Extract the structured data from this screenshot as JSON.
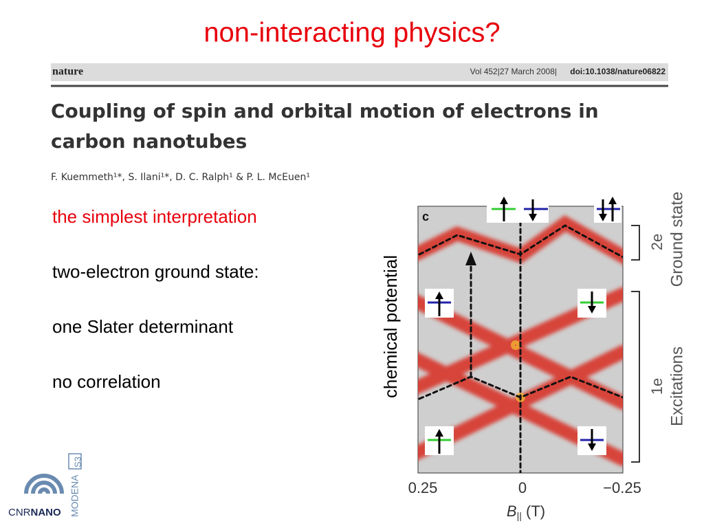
{
  "title": "non-interacting physics?",
  "paper": {
    "journal": "nature",
    "citation": "Vol 452|27 March 2008|",
    "doi": "doi:10.1038/nature06822",
    "title_lines": [
      "Coupling of spin and orbital motion of electrons in",
      "carbon nanotubes"
    ],
    "authors": "F. Kuemmeth¹*, S. Ilani¹*, D. C. Ralph¹ & P. L. McEuen¹"
  },
  "bullets": [
    "the simplest interpretation",
    "two-electron ground state:",
    "one Slater determinant",
    "no correlation"
  ],
  "figure": {
    "panel": "c",
    "y_label": "chemical potential",
    "x_label": "B",
    "x_label_sub": "||",
    "x_label_unit": " (T)",
    "x_tick_labels": [
      "0.25",
      "0",
      "−0.25"
    ],
    "upper_count": "2e",
    "upper_label": "Ground state",
    "lower_count": "1e",
    "lower_label": "Excitations"
  },
  "logo": {
    "cnr": "CNR",
    "nano": "NANO",
    "modena": "MODENA",
    "s3": "S3"
  }
}
